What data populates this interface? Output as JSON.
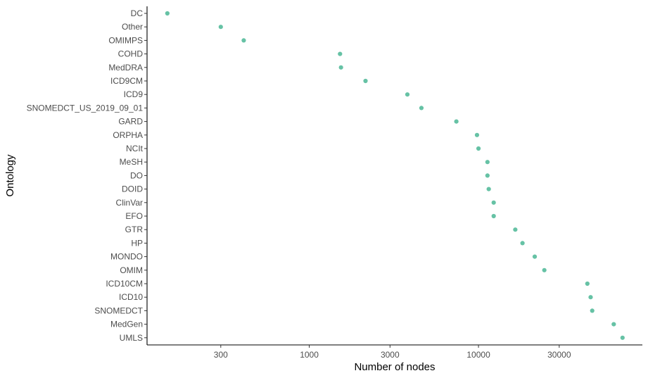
{
  "chart_data": {
    "type": "scatter",
    "title": "",
    "xlabel": "Number of nodes",
    "ylabel": "Ontology",
    "x_scale": "log10",
    "xlim": [
      110,
      93000
    ],
    "x_ticks": [
      300,
      1000,
      3000,
      10000,
      30000
    ],
    "x_tick_labels": [
      "300",
      "1000",
      "3000",
      "10000",
      "30000"
    ],
    "grid": false,
    "legend": "none",
    "point_color": "#66c2a5",
    "categories": [
      "DC",
      "Other",
      "OMIMPS",
      "COHD",
      "MedDRA",
      "ICD9CM",
      "ICD9",
      "SNOMEDCT_US_2019_09_01",
      "GARD",
      "ORPHA",
      "NCIt",
      "MeSH",
      "DO",
      "DOID",
      "ClinVar",
      "EFO",
      "GTR",
      "HP",
      "MONDO",
      "OMIM",
      "ICD10CM",
      "ICD10",
      "SNOMEDCT",
      "MedGen",
      "UMLS"
    ],
    "values": [
      145,
      300,
      410,
      1520,
      1540,
      2150,
      3800,
      4600,
      7400,
      9800,
      10000,
      11300,
      11300,
      11500,
      12300,
      12300,
      16500,
      18200,
      21500,
      24500,
      44000,
      46000,
      47000,
      63000,
      71000
    ]
  }
}
